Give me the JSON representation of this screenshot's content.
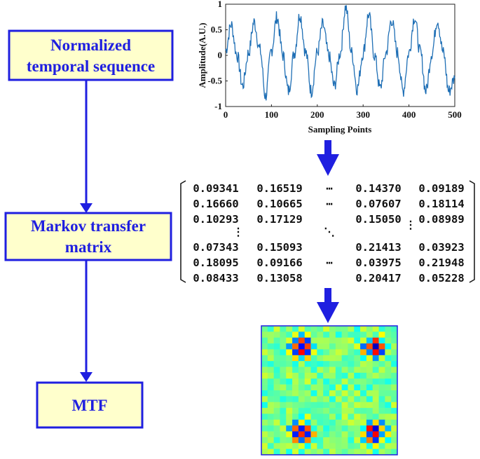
{
  "flowchart": {
    "boxes": [
      {
        "id": "normalized",
        "lines": [
          "Normalized",
          "temporal sequence"
        ]
      },
      {
        "id": "markov",
        "lines": [
          "Markov transfer",
          "matrix"
        ]
      },
      {
        "id": "mtf",
        "lines": [
          "MTF"
        ]
      }
    ]
  },
  "colors": {
    "box_fill": "#ffffcc",
    "box_border": "#1f1fe0",
    "arrow": "#1f1fe0",
    "signal": "#1f6fb5"
  },
  "chart_data": {
    "type": "line",
    "xlabel": "Sampling Points",
    "ylabel": "Amplitude(A.U.)",
    "xlim": [
      0,
      500
    ],
    "ylim": [
      -1,
      1
    ],
    "xticks": [
      "0",
      "100",
      "200",
      "300",
      "400",
      "500"
    ],
    "yticks": [
      "1",
      "0.5",
      "0",
      "-0.5",
      "-1"
    ],
    "series": [
      {
        "period": 50,
        "x": [
          0,
          12,
          25,
          37,
          50,
          62,
          75,
          87,
          100,
          112,
          125,
          137,
          150,
          162,
          175,
          187,
          200,
          212,
          225,
          237,
          250,
          262,
          275,
          287,
          300,
          312,
          325,
          337,
          350,
          362,
          375,
          387,
          400,
          412,
          425,
          437,
          450,
          462,
          475,
          487,
          500
        ],
        "y": [
          0.1,
          0.6,
          0.0,
          -0.6,
          0.05,
          0.65,
          0.1,
          -0.8,
          0.1,
          0.75,
          0.0,
          -0.7,
          0.05,
          0.8,
          0.05,
          -0.7,
          0.05,
          0.6,
          0.0,
          -0.6,
          0.05,
          0.95,
          0.05,
          -0.65,
          0.05,
          0.8,
          0.0,
          -0.65,
          0.05,
          0.7,
          0.05,
          -0.7,
          0.05,
          0.75,
          0.05,
          -0.7,
          0.05,
          0.7,
          0.05,
          -0.7,
          -0.45
        ]
      }
    ]
  },
  "matrix": {
    "rows": [
      [
        "0.09341",
        "0.16519",
        "⋯",
        "0.14370",
        "0.09189"
      ],
      [
        "0.16660",
        "0.10665",
        "⋯",
        "0.07607",
        "0.18114"
      ],
      [
        "0.10293",
        "0.17129",
        "",
        "0.15050",
        "0.08989"
      ],
      [
        "0.07343",
        "0.15093",
        "",
        "0.21413",
        "0.03923"
      ],
      [
        "0.18095",
        "0.09166",
        "⋯",
        "0.03975",
        "0.21948"
      ],
      [
        "0.08433",
        "0.13058",
        "",
        "0.20417",
        "0.05228"
      ]
    ],
    "vdots": "⋮",
    "ddots": "⋱"
  },
  "heatmap": {
    "grid_size": 22,
    "hotspots_centers_fraction": [
      [
        0.3,
        0.17
      ],
      [
        0.83,
        0.17
      ],
      [
        0.3,
        0.82
      ],
      [
        0.83,
        0.82
      ]
    ]
  }
}
